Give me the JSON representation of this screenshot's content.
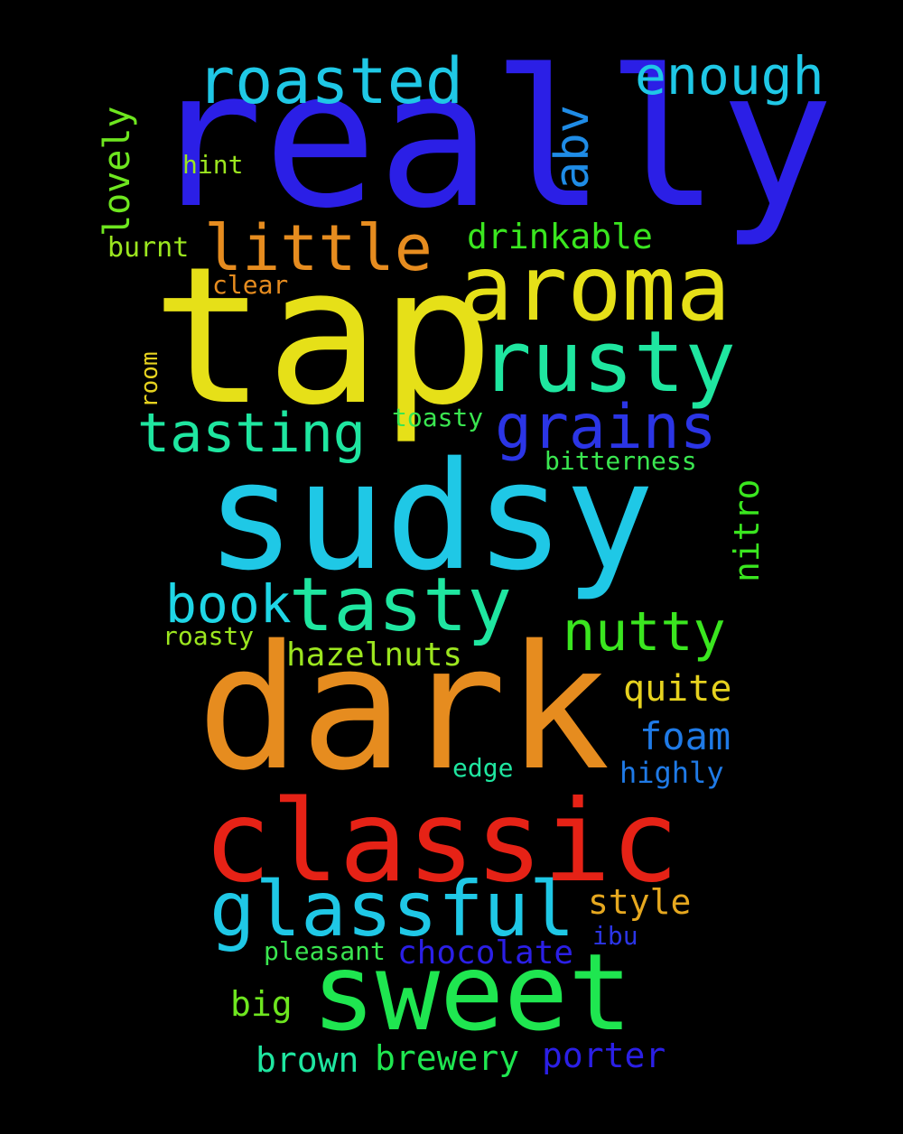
{
  "background": "#000000",
  "words": [
    {
      "text": "really",
      "color": "#2b1fe6"
    },
    {
      "text": "tap",
      "color": "#e6e018"
    },
    {
      "text": "sudsy",
      "color": "#1fc8e6"
    },
    {
      "text": "dark",
      "color": "#e68c1f"
    },
    {
      "text": "classic",
      "color": "#e62216"
    },
    {
      "text": "sweet",
      "color": "#1fe650"
    },
    {
      "text": "aroma",
      "color": "#e6e018"
    },
    {
      "text": "rusty",
      "color": "#1fe6a0"
    },
    {
      "text": "glassful",
      "color": "#1fc8e6"
    },
    {
      "text": "tasty",
      "color": "#1fe6a0"
    },
    {
      "text": "roasted",
      "color": "#1fc8e6"
    },
    {
      "text": "little",
      "color": "#e68c1f"
    },
    {
      "text": "grains",
      "color": "#2b35e6"
    },
    {
      "text": "tasting",
      "color": "#1fe6a0"
    },
    {
      "text": "nutty",
      "color": "#3ae61f"
    },
    {
      "text": "book",
      "color": "#1fd6e6"
    },
    {
      "text": "enough",
      "color": "#1fc8e6"
    },
    {
      "text": "abv",
      "color": "#1f8ce6"
    },
    {
      "text": "lovely",
      "color": "#6ee61f"
    },
    {
      "text": "drinkable",
      "color": "#3ae61f"
    },
    {
      "text": "hazelnuts",
      "color": "#9ce61f"
    },
    {
      "text": "quite",
      "color": "#e6d21f"
    },
    {
      "text": "foam",
      "color": "#1f7ae6"
    },
    {
      "text": "style",
      "color": "#e6a81f"
    },
    {
      "text": "chocolate",
      "color": "#2b1fe6"
    },
    {
      "text": "porter",
      "color": "#2b1fe6"
    },
    {
      "text": "brewery",
      "color": "#1fe650"
    },
    {
      "text": "brown",
      "color": "#1fe6a0"
    },
    {
      "text": "big",
      "color": "#6ee61f"
    },
    {
      "text": "nitro",
      "color": "#3ae61f"
    },
    {
      "text": "highly",
      "color": "#1f7ae6"
    },
    {
      "text": "bitterness",
      "color": "#3ae650"
    },
    {
      "text": "toasty",
      "color": "#3ae650"
    },
    {
      "text": "edge",
      "color": "#1fe6a0"
    },
    {
      "text": "pleasant",
      "color": "#3ae650"
    },
    {
      "text": "ibu",
      "color": "#2b35e6"
    },
    {
      "text": "roasty",
      "color": "#9ce61f"
    },
    {
      "text": "burnt",
      "color": "#9ce61f"
    },
    {
      "text": "hint",
      "color": "#9ce61f"
    },
    {
      "text": "clear",
      "color": "#e68c1f"
    },
    {
      "text": "room",
      "color": "#e6d21f"
    }
  ]
}
